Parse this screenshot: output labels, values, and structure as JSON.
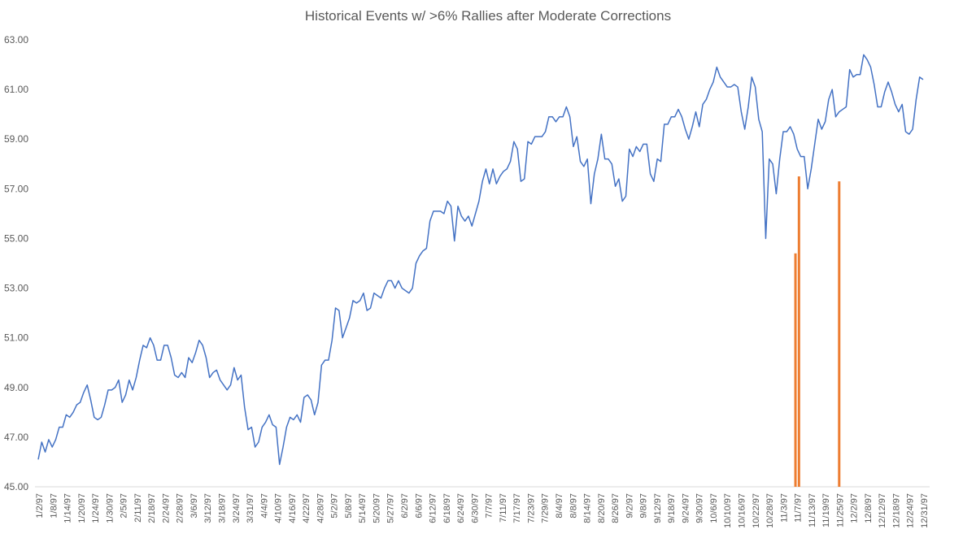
{
  "chart_data": {
    "type": "line",
    "title": "Historical Events w/ >6% Rallies after Moderate Corrections",
    "xlabel": "",
    "ylabel": "",
    "ylim": [
      45,
      63
    ],
    "y_ticks": [
      "45.00",
      "47.00",
      "49.00",
      "51.00",
      "53.00",
      "55.00",
      "57.00",
      "59.00",
      "61.00",
      "63.00"
    ],
    "x_tick_labels": [
      "1/2/97",
      "1/8/97",
      "1/14/97",
      "1/20/97",
      "1/24/97",
      "1/30/97",
      "2/5/97",
      "2/11/97",
      "2/18/97",
      "2/24/97",
      "2/28/97",
      "3/6/97",
      "3/12/97",
      "3/18/97",
      "3/24/97",
      "3/31/97",
      "4/4/97",
      "4/10/97",
      "4/16/97",
      "4/22/97",
      "4/28/97",
      "5/2/97",
      "5/8/97",
      "5/14/97",
      "5/20/97",
      "5/27/97",
      "6/2/97",
      "6/6/97",
      "6/12/97",
      "6/18/97",
      "6/24/97",
      "6/30/97",
      "7/7/97",
      "7/11/97",
      "7/17/97",
      "7/23/97",
      "7/29/97",
      "8/4/97",
      "8/8/97",
      "8/14/97",
      "8/20/97",
      "8/26/97",
      "9/2/97",
      "9/8/97",
      "9/12/97",
      "9/18/97",
      "9/24/97",
      "9/30/97",
      "10/6/97",
      "10/10/97",
      "10/16/97",
      "10/22/97",
      "10/28/97",
      "11/3/97",
      "11/7/97",
      "11/13/97",
      "11/19/97",
      "11/25/97",
      "12/2/97",
      "12/8/97",
      "12/12/97",
      "12/18/97",
      "12/24/97",
      "12/31/97"
    ],
    "grid": false,
    "legend": "none",
    "series": [
      {
        "color": "#4472C4",
        "values": [
          46.1,
          46.8,
          46.4,
          46.9,
          46.6,
          46.9,
          47.4,
          47.4,
          47.9,
          47.8,
          48.0,
          48.3,
          48.4,
          48.8,
          49.1,
          48.5,
          47.8,
          47.7,
          47.8,
          48.3,
          48.9,
          48.9,
          49.0,
          49.3,
          48.4,
          48.7,
          49.3,
          48.9,
          49.4,
          50.1,
          50.7,
          50.6,
          51.0,
          50.7,
          50.1,
          50.1,
          50.7,
          50.7,
          50.2,
          49.5,
          49.4,
          49.6,
          49.4,
          50.2,
          50.0,
          50.4,
          50.9,
          50.7,
          50.2,
          49.4,
          49.6,
          49.7,
          49.3,
          49.1,
          48.9,
          49.1,
          49.8,
          49.3,
          49.5,
          48.2,
          47.3,
          47.4,
          46.6,
          46.8,
          47.4,
          47.6,
          47.9,
          47.5,
          47.4,
          45.9,
          46.6,
          47.4,
          47.8,
          47.7,
          47.9,
          47.6,
          48.6,
          48.7,
          48.5,
          47.9,
          48.4,
          49.9,
          50.1,
          50.1,
          50.9,
          52.2,
          52.1,
          51.0,
          51.4,
          51.8,
          52.5,
          52.4,
          52.5,
          52.8,
          52.1,
          52.2,
          52.8,
          52.7,
          52.6,
          53.0,
          53.3,
          53.3,
          53.0,
          53.3,
          53.0,
          52.9,
          52.8,
          53.0,
          54.0,
          54.3,
          54.5,
          54.6,
          55.7,
          56.1,
          56.1,
          56.1,
          56.0,
          56.5,
          56.3,
          54.9,
          56.3,
          55.9,
          55.7,
          55.9,
          55.5,
          56.0,
          56.5,
          57.3,
          57.8,
          57.2,
          57.8,
          57.2,
          57.5,
          57.7,
          57.8,
          58.1,
          58.9,
          58.6,
          57.3,
          57.4,
          58.9,
          58.8,
          59.1,
          59.1,
          59.1,
          59.3,
          59.9,
          59.9,
          59.7,
          59.9,
          59.9,
          60.3,
          59.9,
          58.7,
          59.1,
          58.1,
          57.9,
          58.2,
          56.4,
          57.6,
          58.2,
          59.2,
          58.2,
          58.2,
          58.0,
          57.1,
          57.4,
          56.5,
          56.7,
          58.6,
          58.3,
          58.7,
          58.5,
          58.8,
          58.8,
          57.6,
          57.3,
          58.2,
          58.1,
          59.6,
          59.6,
          59.9,
          59.9,
          60.2,
          59.9,
          59.4,
          59.0,
          59.5,
          60.1,
          59.5,
          60.4,
          60.6,
          61.0,
          61.3,
          61.9,
          61.5,
          61.3,
          61.1,
          61.1,
          61.2,
          61.1,
          60.1,
          59.4,
          60.3,
          61.5,
          61.1,
          59.8,
          59.3,
          55.0,
          58.2,
          58.0,
          56.8,
          58.2,
          59.3,
          59.3,
          59.5,
          59.2,
          58.6,
          58.3,
          58.3,
          57.0,
          57.8,
          58.8,
          59.8,
          59.4,
          59.7,
          60.6,
          61.0,
          59.9,
          60.1,
          60.2,
          60.3,
          61.8,
          61.5,
          61.6,
          61.6,
          62.4,
          62.2,
          61.9,
          61.2,
          60.3,
          60.3,
          60.9,
          61.3,
          60.9,
          60.4,
          60.1,
          60.4,
          59.3,
          59.2,
          59.4,
          60.6,
          61.5,
          61.4
        ]
      }
    ],
    "event_markers": {
      "color": "#ED7D31",
      "bars": [
        {
          "x": 216.5,
          "value": 54.4
        },
        {
          "x": 217.5,
          "value": 57.5
        },
        {
          "x": 229,
          "value": 57.3
        }
      ]
    }
  }
}
